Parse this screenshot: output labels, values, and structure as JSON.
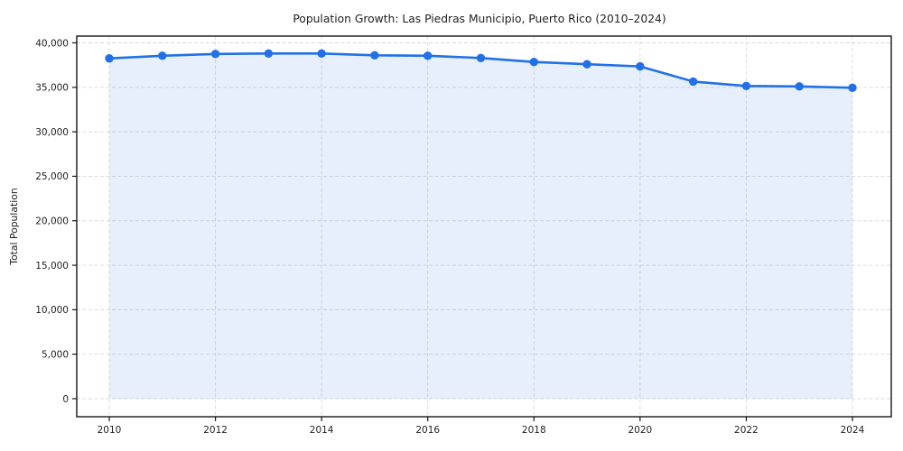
{
  "figure": {
    "background": "#ffffff"
  },
  "chart_data": {
    "type": "area",
    "title": "Population Growth: Las Piedras Municipio, Puerto Rico (2010–2024)",
    "xlabel": "",
    "ylabel": "Total Population",
    "x": [
      2010,
      2011,
      2012,
      2013,
      2014,
      2015,
      2016,
      2017,
      2018,
      2019,
      2020,
      2021,
      2022,
      2023,
      2024
    ],
    "series": [
      {
        "name": "Total Population",
        "values": [
          38250,
          38550,
          38750,
          38800,
          38800,
          38600,
          38550,
          38300,
          37850,
          37600,
          37350,
          35650,
          35150,
          35100,
          34950
        ]
      }
    ],
    "ylim": [
      0,
      40000
    ],
    "ytick_step": 5000,
    "yticks": [
      0,
      5000,
      10000,
      15000,
      20000,
      25000,
      30000,
      35000,
      40000
    ],
    "xticks": [
      2010,
      2012,
      2014,
      2016,
      2018,
      2020,
      2022,
      2024
    ],
    "grid": true,
    "grid_style": "dashed",
    "legend_position": "none",
    "colors": {
      "line": "#2170e8",
      "marker": "#2170e8",
      "fill": "rgba(33, 112, 232, 0.11)",
      "grid": "#dadada",
      "spine": "#161616",
      "tick_text": "#1f1f1f"
    }
  }
}
